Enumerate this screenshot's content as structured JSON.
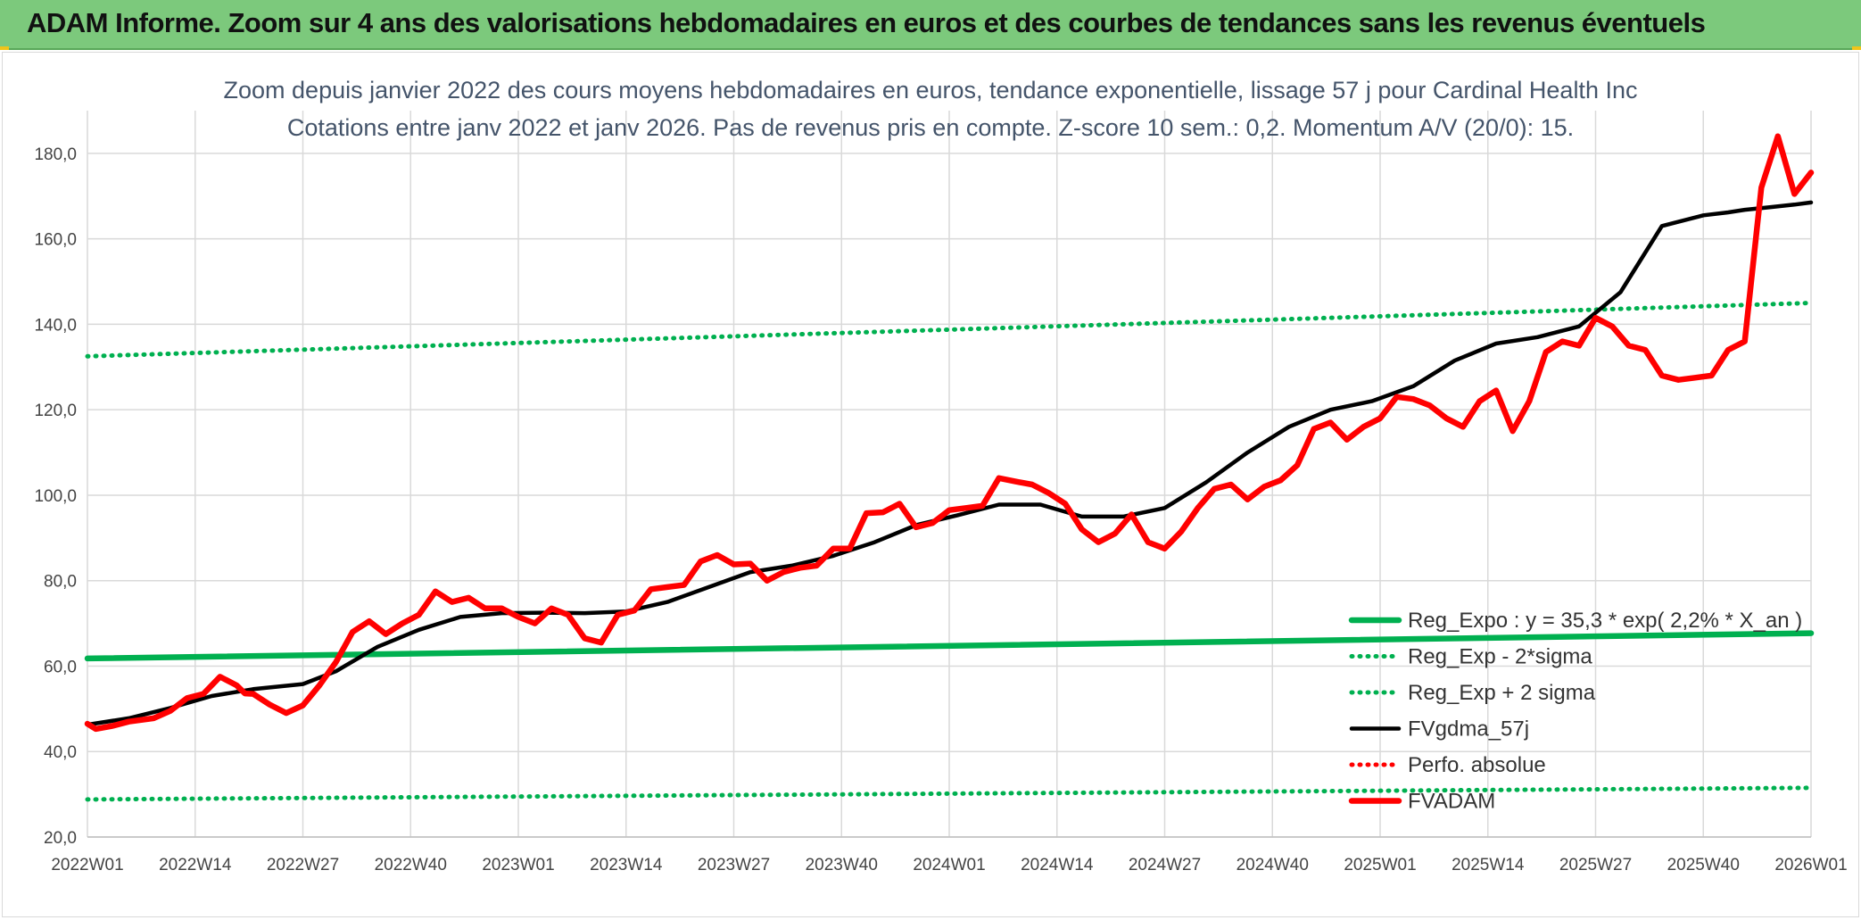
{
  "header": {
    "title": "ADAM Informe. Zoom sur 4 ans des valorisations hebdomadaires en euros et des courbes de tendances sans les revenus éventuels"
  },
  "chart_data": {
    "type": "line",
    "title_line1": "Zoom depuis janvier 2022 des cours moyens hebdomadaires en euros, tendance exponentielle, lissage 57 j pour Cardinal Health Inc",
    "title_line2": "Cotations entre janv 2022 et janv 2026. Pas de revenus pris en compte. Z-score 10 sem.: 0,2. Momentum A/V (20/0): 15.",
    "xlabel": "",
    "ylabel": "",
    "x_tick_labels": [
      "2022W01",
      "2022W14",
      "2022W27",
      "2022W40",
      "2023W01",
      "2023W14",
      "2023W27",
      "2023W40",
      "2024W01",
      "2024W14",
      "2024W27",
      "2024W40",
      "2025W01",
      "2025W14",
      "2025W27",
      "2025W40",
      "2026W01"
    ],
    "ylim": [
      20,
      190
    ],
    "y_ticks": [
      20,
      40,
      60,
      80,
      100,
      120,
      140,
      160,
      180
    ],
    "y_tick_labels": [
      "20,0",
      "40,0",
      "60,0",
      "80,0",
      "100,0",
      "120,0",
      "140,0",
      "160,0",
      "180,0"
    ],
    "grid": true,
    "legend_position": "bottom-right",
    "x_range_weeks": [
      0,
      208
    ],
    "series": [
      {
        "name": "Reg_Expo : y = 35,3 * exp( 2,2% *  X_an )",
        "color": "#00b050",
        "style": "solid-thick",
        "x": [
          0,
          208
        ],
        "values": [
          61.8,
          67.7
        ]
      },
      {
        "name": "Reg_Exp - 2*sigma",
        "color": "#00b050",
        "style": "dotted",
        "x": [
          0,
          208
        ],
        "values": [
          28.8,
          31.5
        ]
      },
      {
        "name": "Reg_Exp + 2 sigma",
        "color": "#00b050",
        "style": "dotted",
        "x": [
          0,
          208
        ],
        "values": [
          132.5,
          145.0
        ]
      },
      {
        "name": "FVgdma_57j",
        "color": "#000000",
        "style": "solid",
        "x": [
          0,
          5,
          10,
          15,
          20,
          26,
          30,
          35,
          40,
          45,
          50,
          55,
          60,
          65,
          70,
          75,
          80,
          85,
          90,
          95,
          100,
          105,
          110,
          115,
          120,
          125,
          130,
          135,
          140,
          145,
          150,
          155,
          160,
          165,
          170,
          175,
          180,
          185,
          190,
          195,
          198,
          200,
          203,
          206,
          208
        ],
        "values": [
          46.3,
          47.8,
          50.2,
          53.0,
          54.6,
          55.8,
          58.8,
          64.5,
          68.5,
          71.5,
          72.4,
          72.5,
          72.4,
          72.8,
          75.0,
          78.5,
          82.0,
          83.5,
          85.8,
          89.0,
          93.0,
          95.3,
          97.8,
          97.8,
          95.0,
          95.0,
          97.0,
          103.0,
          110.0,
          116.0,
          120.0,
          122.0,
          125.5,
          131.5,
          135.5,
          137.0,
          139.5,
          147.5,
          163.0,
          165.5,
          166.2,
          166.8,
          167.4,
          168.0,
          168.5
        ]
      },
      {
        "name": "Perfo. absolue",
        "color": "#ff0000",
        "style": "dotted",
        "x": [],
        "values": []
      },
      {
        "name": "FVADAM",
        "color": "#ff0000",
        "style": "solid-thick",
        "x": [
          0,
          1,
          3,
          5,
          8,
          10,
          12,
          14,
          16,
          18,
          19,
          20,
          22,
          24,
          26,
          28,
          30,
          32,
          34,
          36,
          38,
          40,
          42,
          44,
          46,
          48,
          50,
          52,
          54,
          56,
          58,
          60,
          62,
          64,
          66,
          68,
          70,
          72,
          74,
          76,
          78,
          80,
          82,
          84,
          86,
          88,
          90,
          92,
          94,
          96,
          98,
          100,
          102,
          104,
          106,
          108,
          110,
          112,
          114,
          116,
          118,
          120,
          122,
          124,
          126,
          128,
          130,
          132,
          134,
          136,
          138,
          140,
          142,
          144,
          146,
          148,
          150,
          152,
          154,
          156,
          158,
          160,
          162,
          164,
          166,
          168,
          170,
          172,
          174,
          176,
          178,
          180,
          182,
          184,
          186,
          188,
          190,
          192,
          194,
          196,
          198,
          200,
          202,
          204,
          206,
          208
        ],
        "values": [
          46.5,
          45.3,
          46.0,
          47.0,
          47.8,
          49.5,
          52.5,
          53.5,
          57.5,
          55.5,
          53.6,
          53.5,
          51.0,
          49.0,
          50.8,
          55.5,
          61.0,
          68.0,
          70.5,
          67.5,
          70.0,
          72.0,
          77.5,
          75.0,
          76.0,
          73.5,
          73.5,
          71.5,
          70.0,
          73.5,
          72.0,
          66.5,
          65.5,
          72.0,
          73.0,
          78.0,
          78.5,
          79.0,
          84.5,
          86.0,
          83.8,
          84.0,
          80.0,
          82.0,
          83.0,
          83.5,
          87.5,
          87.5,
          95.8,
          96.0,
          98.0,
          92.5,
          93.5,
          96.5,
          97.0,
          97.5,
          104.0,
          103.2,
          102.5,
          100.5,
          98.0,
          92.0,
          89.0,
          91.0,
          95.5,
          89.0,
          87.5,
          91.5,
          97.0,
          101.5,
          102.5,
          99.0,
          102.0,
          103.5,
          107.0,
          115.5,
          117.0,
          113.0,
          116.0,
          118.0,
          123.0,
          122.5,
          121.0,
          118.0,
          116.0,
          122.0,
          124.5,
          115.0,
          122.0,
          133.5,
          136.0,
          135.0,
          141.5,
          139.5,
          135.0,
          134.0,
          128.0,
          127.0,
          127.5,
          128.0,
          134.0,
          136.0,
          172.0,
          184.0,
          170.5,
          175.5
        ]
      }
    ]
  }
}
